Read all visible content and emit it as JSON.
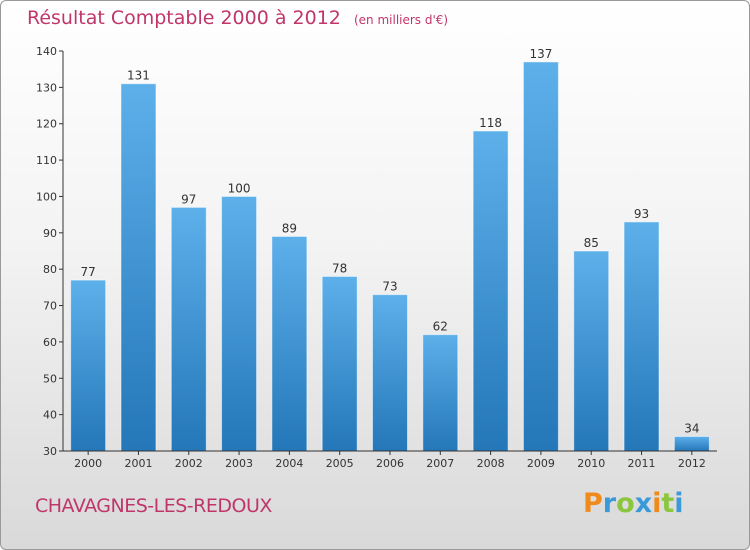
{
  "chart_data": {
    "type": "bar",
    "title": "Résultat Comptable 2000 à 2012",
    "subtitle": "(en milliers d'€)",
    "categories": [
      "2000",
      "2001",
      "2002",
      "2003",
      "2004",
      "2005",
      "2006",
      "2007",
      "2008",
      "2009",
      "2010",
      "2011",
      "2012"
    ],
    "values": [
      77,
      131,
      97,
      100,
      89,
      78,
      73,
      62,
      118,
      137,
      85,
      93,
      34
    ],
    "ylim": [
      30,
      140
    ],
    "yticks": [
      30,
      40,
      50,
      60,
      70,
      80,
      90,
      100,
      110,
      120,
      130,
      140
    ],
    "grid": false,
    "colors": {
      "bar_light": "#5db0ea",
      "bar_dark": "#2477b8",
      "title": "#c0366a"
    }
  },
  "location": "CHAVAGNES-LES-REDOUX",
  "logo": {
    "text": "Proxiti",
    "letters": [
      {
        "ch": "P",
        "color": "#f08a1c"
      },
      {
        "ch": "r",
        "color": "#3a9ad9"
      },
      {
        "ch": "o",
        "color": "#8cc63f"
      },
      {
        "ch": "x",
        "color": "#3a9ad9"
      },
      {
        "ch": "i",
        "color": "#f08a1c"
      },
      {
        "ch": "t",
        "color": "#8cc63f"
      },
      {
        "ch": "i",
        "color": "#3a9ad9"
      }
    ]
  }
}
